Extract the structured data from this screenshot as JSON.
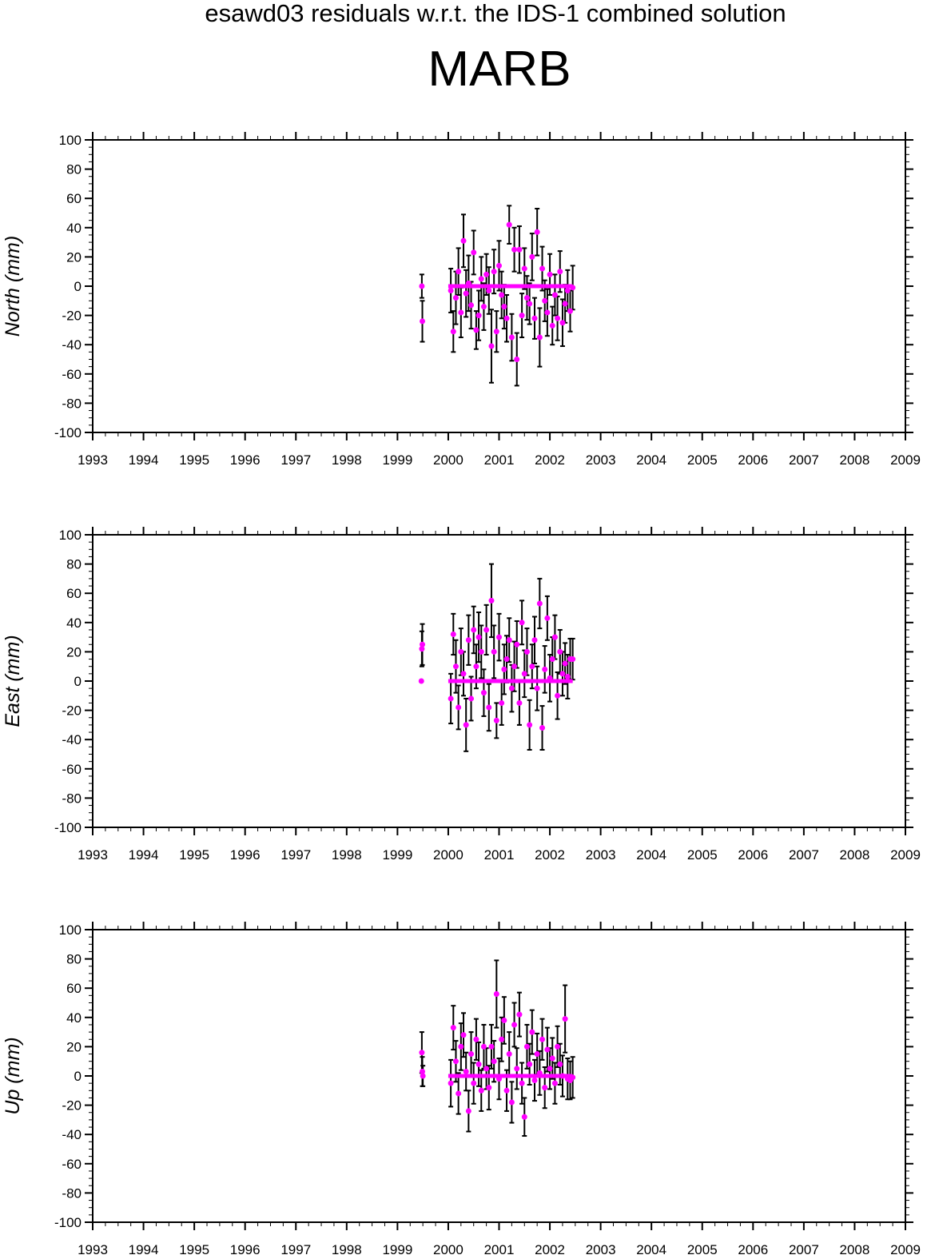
{
  "header": {
    "subtitle": "esawd03 residuals w.r.t. the IDS-1 combined solution",
    "title": "MARB"
  },
  "colors": {
    "point": "#ff00ff",
    "errorbar": "#000000",
    "axis": "#000000"
  },
  "chart_data": [
    {
      "type": "scatter",
      "ylabel": "North (mm)",
      "xlim": [
        1993,
        2009
      ],
      "ylim": [
        -100,
        100
      ],
      "xticks": [
        "1993",
        "1994",
        "1995",
        "1996",
        "1997",
        "1998",
        "1999",
        "2000",
        "2001",
        "2002",
        "2003",
        "2004",
        "2005",
        "2006",
        "2007",
        "2008",
        "2009"
      ],
      "yticks": [
        "100",
        "80",
        "60",
        "40",
        "20",
        "0",
        "-20",
        "-40",
        "-60",
        "-80",
        "-100"
      ],
      "error_bars": true,
      "series": [
        {
          "points": [
            {
              "x": 1999.48,
              "y": 0,
              "err": 8
            },
            {
              "x": 1999.49,
              "y": -24,
              "err": 14
            },
            {
              "x": 2000.05,
              "y": -3,
              "err": 15
            },
            {
              "x": 2000.1,
              "y": -31,
              "err": 14
            },
            {
              "x": 2000.15,
              "y": -8,
              "err": 18
            },
            {
              "x": 2000.2,
              "y": 10,
              "err": 16
            },
            {
              "x": 2000.25,
              "y": -18,
              "err": 17
            },
            {
              "x": 2000.3,
              "y": 31,
              "err": 18
            },
            {
              "x": 2000.35,
              "y": -5,
              "err": 16
            },
            {
              "x": 2000.4,
              "y": 2,
              "err": 19
            },
            {
              "x": 2000.45,
              "y": -13,
              "err": 16
            },
            {
              "x": 2000.5,
              "y": 23,
              "err": 15
            },
            {
              "x": 2000.55,
              "y": -30,
              "err": 13
            },
            {
              "x": 2000.6,
              "y": -20,
              "err": 17
            },
            {
              "x": 2000.65,
              "y": 5,
              "err": 15
            },
            {
              "x": 2000.7,
              "y": -14,
              "err": 16
            },
            {
              "x": 2000.75,
              "y": 8,
              "err": 14
            },
            {
              "x": 2000.8,
              "y": -3,
              "err": 16
            },
            {
              "x": 2000.85,
              "y": -41,
              "err": 25
            },
            {
              "x": 2000.9,
              "y": 10,
              "err": 15
            },
            {
              "x": 2000.95,
              "y": -31,
              "err": 14
            },
            {
              "x": 2001.0,
              "y": 14,
              "err": 17
            },
            {
              "x": 2001.05,
              "y": -6,
              "err": 16
            },
            {
              "x": 2001.1,
              "y": -14,
              "err": 15
            },
            {
              "x": 2001.15,
              "y": -22,
              "err": 16
            },
            {
              "x": 2001.2,
              "y": 42,
              "err": 13
            },
            {
              "x": 2001.25,
              "y": -35,
              "err": 16
            },
            {
              "x": 2001.3,
              "y": 25,
              "err": 15
            },
            {
              "x": 2001.35,
              "y": -50,
              "err": 18
            },
            {
              "x": 2001.4,
              "y": 25,
              "err": 16
            },
            {
              "x": 2001.45,
              "y": -20,
              "err": 15
            },
            {
              "x": 2001.5,
              "y": 12,
              "err": 14
            },
            {
              "x": 2001.55,
              "y": -8,
              "err": 15
            },
            {
              "x": 2001.6,
              "y": -12,
              "err": 14
            },
            {
              "x": 2001.65,
              "y": 20,
              "err": 16
            },
            {
              "x": 2001.7,
              "y": -22,
              "err": 14
            },
            {
              "x": 2001.75,
              "y": 37,
              "err": 16
            },
            {
              "x": 2001.8,
              "y": -35,
              "err": 20
            },
            {
              "x": 2001.85,
              "y": 12,
              "err": 15
            },
            {
              "x": 2001.9,
              "y": -10,
              "err": 14
            },
            {
              "x": 2001.95,
              "y": -18,
              "err": 16
            },
            {
              "x": 2002.0,
              "y": 8,
              "err": 14
            },
            {
              "x": 2002.05,
              "y": -27,
              "err": 13
            },
            {
              "x": 2002.1,
              "y": -6,
              "err": 14
            },
            {
              "x": 2002.15,
              "y": -22,
              "err": 15
            },
            {
              "x": 2002.2,
              "y": 10,
              "err": 14
            },
            {
              "x": 2002.25,
              "y": -25,
              "err": 16
            },
            {
              "x": 2002.3,
              "y": -12,
              "err": 13
            },
            {
              "x": 2002.35,
              "y": -3,
              "err": 14
            },
            {
              "x": 2002.4,
              "y": -17,
              "err": 14
            },
            {
              "x": 2002.45,
              "y": -1,
              "err": 15
            }
          ]
        },
        {
          "name": "",
          "line": {
            "x": [
              2000.0,
              2002.45
            ],
            "y": [
              0,
              0
            ]
          }
        }
      ]
    },
    {
      "type": "scatter",
      "ylabel": "East (mm)",
      "xlim": [
        1993,
        2009
      ],
      "ylim": [
        -100,
        100
      ],
      "xticks": [
        "1993",
        "1994",
        "1995",
        "1996",
        "1997",
        "1998",
        "1999",
        "2000",
        "2001",
        "2002",
        "2003",
        "2004",
        "2005",
        "2006",
        "2007",
        "2008",
        "2009"
      ],
      "yticks": [
        "100",
        "80",
        "60",
        "40",
        "20",
        "0",
        "-20",
        "-40",
        "-60",
        "-80",
        "-100"
      ],
      "error_bars": true,
      "series": [
        {
          "points": [
            {
              "x": 1999.47,
              "y": 0,
              "err": 0
            },
            {
              "x": 1999.48,
              "y": 22,
              "err": 12
            },
            {
              "x": 1999.49,
              "y": 25,
              "err": 14
            },
            {
              "x": 2000.05,
              "y": -12,
              "err": 17
            },
            {
              "x": 2000.1,
              "y": 32,
              "err": 14
            },
            {
              "x": 2000.15,
              "y": 10,
              "err": 18
            },
            {
              "x": 2000.2,
              "y": -18,
              "err": 15
            },
            {
              "x": 2000.25,
              "y": 20,
              "err": 16
            },
            {
              "x": 2000.3,
              "y": 5,
              "err": 15
            },
            {
              "x": 2000.35,
              "y": -30,
              "err": 18
            },
            {
              "x": 2000.4,
              "y": 28,
              "err": 17
            },
            {
              "x": 2000.45,
              "y": -12,
              "err": 15
            },
            {
              "x": 2000.5,
              "y": 35,
              "err": 16
            },
            {
              "x": 2000.55,
              "y": 10,
              "err": 15
            },
            {
              "x": 2000.6,
              "y": 30,
              "err": 17
            },
            {
              "x": 2000.65,
              "y": 20,
              "err": 18
            },
            {
              "x": 2000.7,
              "y": -8,
              "err": 16
            },
            {
              "x": 2000.75,
              "y": 35,
              "err": 17
            },
            {
              "x": 2000.8,
              "y": -18,
              "err": 16
            },
            {
              "x": 2000.85,
              "y": 55,
              "err": 25
            },
            {
              "x": 2000.9,
              "y": 20,
              "err": 18
            },
            {
              "x": 2000.95,
              "y": -27,
              "err": 12
            },
            {
              "x": 2001.0,
              "y": 30,
              "err": 16
            },
            {
              "x": 2001.05,
              "y": -15,
              "err": 15
            },
            {
              "x": 2001.1,
              "y": 8,
              "err": 17
            },
            {
              "x": 2001.15,
              "y": 15,
              "err": 16
            },
            {
              "x": 2001.2,
              "y": 28,
              "err": 15
            },
            {
              "x": 2001.25,
              "y": -5,
              "err": 16
            },
            {
              "x": 2001.3,
              "y": 10,
              "err": 17
            },
            {
              "x": 2001.35,
              "y": 25,
              "err": 16
            },
            {
              "x": 2001.4,
              "y": -15,
              "err": 15
            },
            {
              "x": 2001.45,
              "y": 40,
              "err": 15
            },
            {
              "x": 2001.5,
              "y": 5,
              "err": 16
            },
            {
              "x": 2001.55,
              "y": 20,
              "err": 16
            },
            {
              "x": 2001.6,
              "y": -30,
              "err": 17
            },
            {
              "x": 2001.65,
              "y": 10,
              "err": 15
            },
            {
              "x": 2001.7,
              "y": 28,
              "err": 16
            },
            {
              "x": 2001.75,
              "y": -5,
              "err": 15
            },
            {
              "x": 2001.8,
              "y": 53,
              "err": 17
            },
            {
              "x": 2001.85,
              "y": -32,
              "err": 15
            },
            {
              "x": 2001.9,
              "y": 8,
              "err": 16
            },
            {
              "x": 2001.95,
              "y": 43,
              "err": 15
            },
            {
              "x": 2002.0,
              "y": 2,
              "err": 16
            },
            {
              "x": 2002.05,
              "y": 15,
              "err": 15
            },
            {
              "x": 2002.1,
              "y": 30,
              "err": 15
            },
            {
              "x": 2002.15,
              "y": -10,
              "err": 16
            },
            {
              "x": 2002.2,
              "y": 20,
              "err": 15
            },
            {
              "x": 2002.25,
              "y": 5,
              "err": 15
            },
            {
              "x": 2002.3,
              "y": 12,
              "err": 14
            },
            {
              "x": 2002.35,
              "y": 3,
              "err": 15
            },
            {
              "x": 2002.4,
              "y": 15,
              "err": 14
            },
            {
              "x": 2002.45,
              "y": 15,
              "err": 14
            }
          ]
        },
        {
          "name": "",
          "line": {
            "x": [
              2000.0,
              2002.45
            ],
            "y": [
              0,
              0
            ]
          }
        }
      ]
    },
    {
      "type": "scatter",
      "ylabel": "Up (mm)",
      "xlim": [
        1993,
        2009
      ],
      "ylim": [
        -100,
        100
      ],
      "xticks": [
        "1993",
        "1994",
        "1995",
        "1996",
        "1997",
        "1998",
        "1999",
        "2000",
        "2001",
        "2002",
        "2003",
        "2004",
        "2005",
        "2006",
        "2007",
        "2008",
        "2009"
      ],
      "yticks": [
        "100",
        "80",
        "60",
        "40",
        "20",
        "0",
        "-20",
        "-40",
        "-60",
        "-80",
        "-100"
      ],
      "error_bars": true,
      "series": [
        {
          "points": [
            {
              "x": 1999.48,
              "y": 16,
              "err": 14
            },
            {
              "x": 1999.49,
              "y": 3,
              "err": 10
            },
            {
              "x": 1999.5,
              "y": 0,
              "err": 7
            },
            {
              "x": 2000.05,
              "y": -5,
              "err": 16
            },
            {
              "x": 2000.1,
              "y": 33,
              "err": 15
            },
            {
              "x": 2000.15,
              "y": 10,
              "err": 14
            },
            {
              "x": 2000.2,
              "y": -12,
              "err": 14
            },
            {
              "x": 2000.25,
              "y": 20,
              "err": 16
            },
            {
              "x": 2000.3,
              "y": 28,
              "err": 15
            },
            {
              "x": 2000.35,
              "y": 3,
              "err": 13
            },
            {
              "x": 2000.4,
              "y": -24,
              "err": 14
            },
            {
              "x": 2000.45,
              "y": 15,
              "err": 15
            },
            {
              "x": 2000.5,
              "y": -5,
              "err": 14
            },
            {
              "x": 2000.55,
              "y": 25,
              "err": 14
            },
            {
              "x": 2000.6,
              "y": 8,
              "err": 15
            },
            {
              "x": 2000.65,
              "y": -10,
              "err": 14
            },
            {
              "x": 2000.7,
              "y": 20,
              "err": 15
            },
            {
              "x": 2000.75,
              "y": 5,
              "err": 14
            },
            {
              "x": 2000.8,
              "y": -8,
              "err": 15
            },
            {
              "x": 2000.85,
              "y": 20,
              "err": 15
            },
            {
              "x": 2000.9,
              "y": 10,
              "err": 14
            },
            {
              "x": 2000.95,
              "y": 56,
              "err": 23
            },
            {
              "x": 2001.0,
              "y": -2,
              "err": 14
            },
            {
              "x": 2001.05,
              "y": 25,
              "err": 15
            },
            {
              "x": 2001.1,
              "y": 38,
              "err": 16
            },
            {
              "x": 2001.15,
              "y": -10,
              "err": 14
            },
            {
              "x": 2001.2,
              "y": 15,
              "err": 15
            },
            {
              "x": 2001.25,
              "y": -18,
              "err": 14
            },
            {
              "x": 2001.3,
              "y": 35,
              "err": 15
            },
            {
              "x": 2001.35,
              "y": 5,
              "err": 14
            },
            {
              "x": 2001.4,
              "y": 42,
              "err": 15
            },
            {
              "x": 2001.45,
              "y": -5,
              "err": 14
            },
            {
              "x": 2001.5,
              "y": -28,
              "err": 13
            },
            {
              "x": 2001.55,
              "y": 20,
              "err": 15
            },
            {
              "x": 2001.6,
              "y": 8,
              "err": 14
            },
            {
              "x": 2001.65,
              "y": 30,
              "err": 15
            },
            {
              "x": 2001.7,
              "y": -3,
              "err": 14
            },
            {
              "x": 2001.75,
              "y": 15,
              "err": 14
            },
            {
              "x": 2001.8,
              "y": 2,
              "err": 15
            },
            {
              "x": 2001.85,
              "y": 25,
              "err": 14
            },
            {
              "x": 2001.9,
              "y": -8,
              "err": 14
            },
            {
              "x": 2001.95,
              "y": 18,
              "err": 15
            },
            {
              "x": 2002.0,
              "y": 5,
              "err": 14
            },
            {
              "x": 2002.05,
              "y": 12,
              "err": 14
            },
            {
              "x": 2002.1,
              "y": -5,
              "err": 14
            },
            {
              "x": 2002.15,
              "y": 20,
              "err": 14
            },
            {
              "x": 2002.2,
              "y": 8,
              "err": 14
            },
            {
              "x": 2002.25,
              "y": 0,
              "err": 14
            },
            {
              "x": 2002.3,
              "y": 39,
              "err": 23
            },
            {
              "x": 2002.35,
              "y": -2,
              "err": 14
            },
            {
              "x": 2002.4,
              "y": -3,
              "err": 13
            },
            {
              "x": 2002.45,
              "y": -1,
              "err": 14
            }
          ]
        },
        {
          "name": "",
          "line": {
            "x": [
              2000.0,
              2002.45
            ],
            "y": [
              0,
              0
            ]
          }
        }
      ]
    }
  ]
}
